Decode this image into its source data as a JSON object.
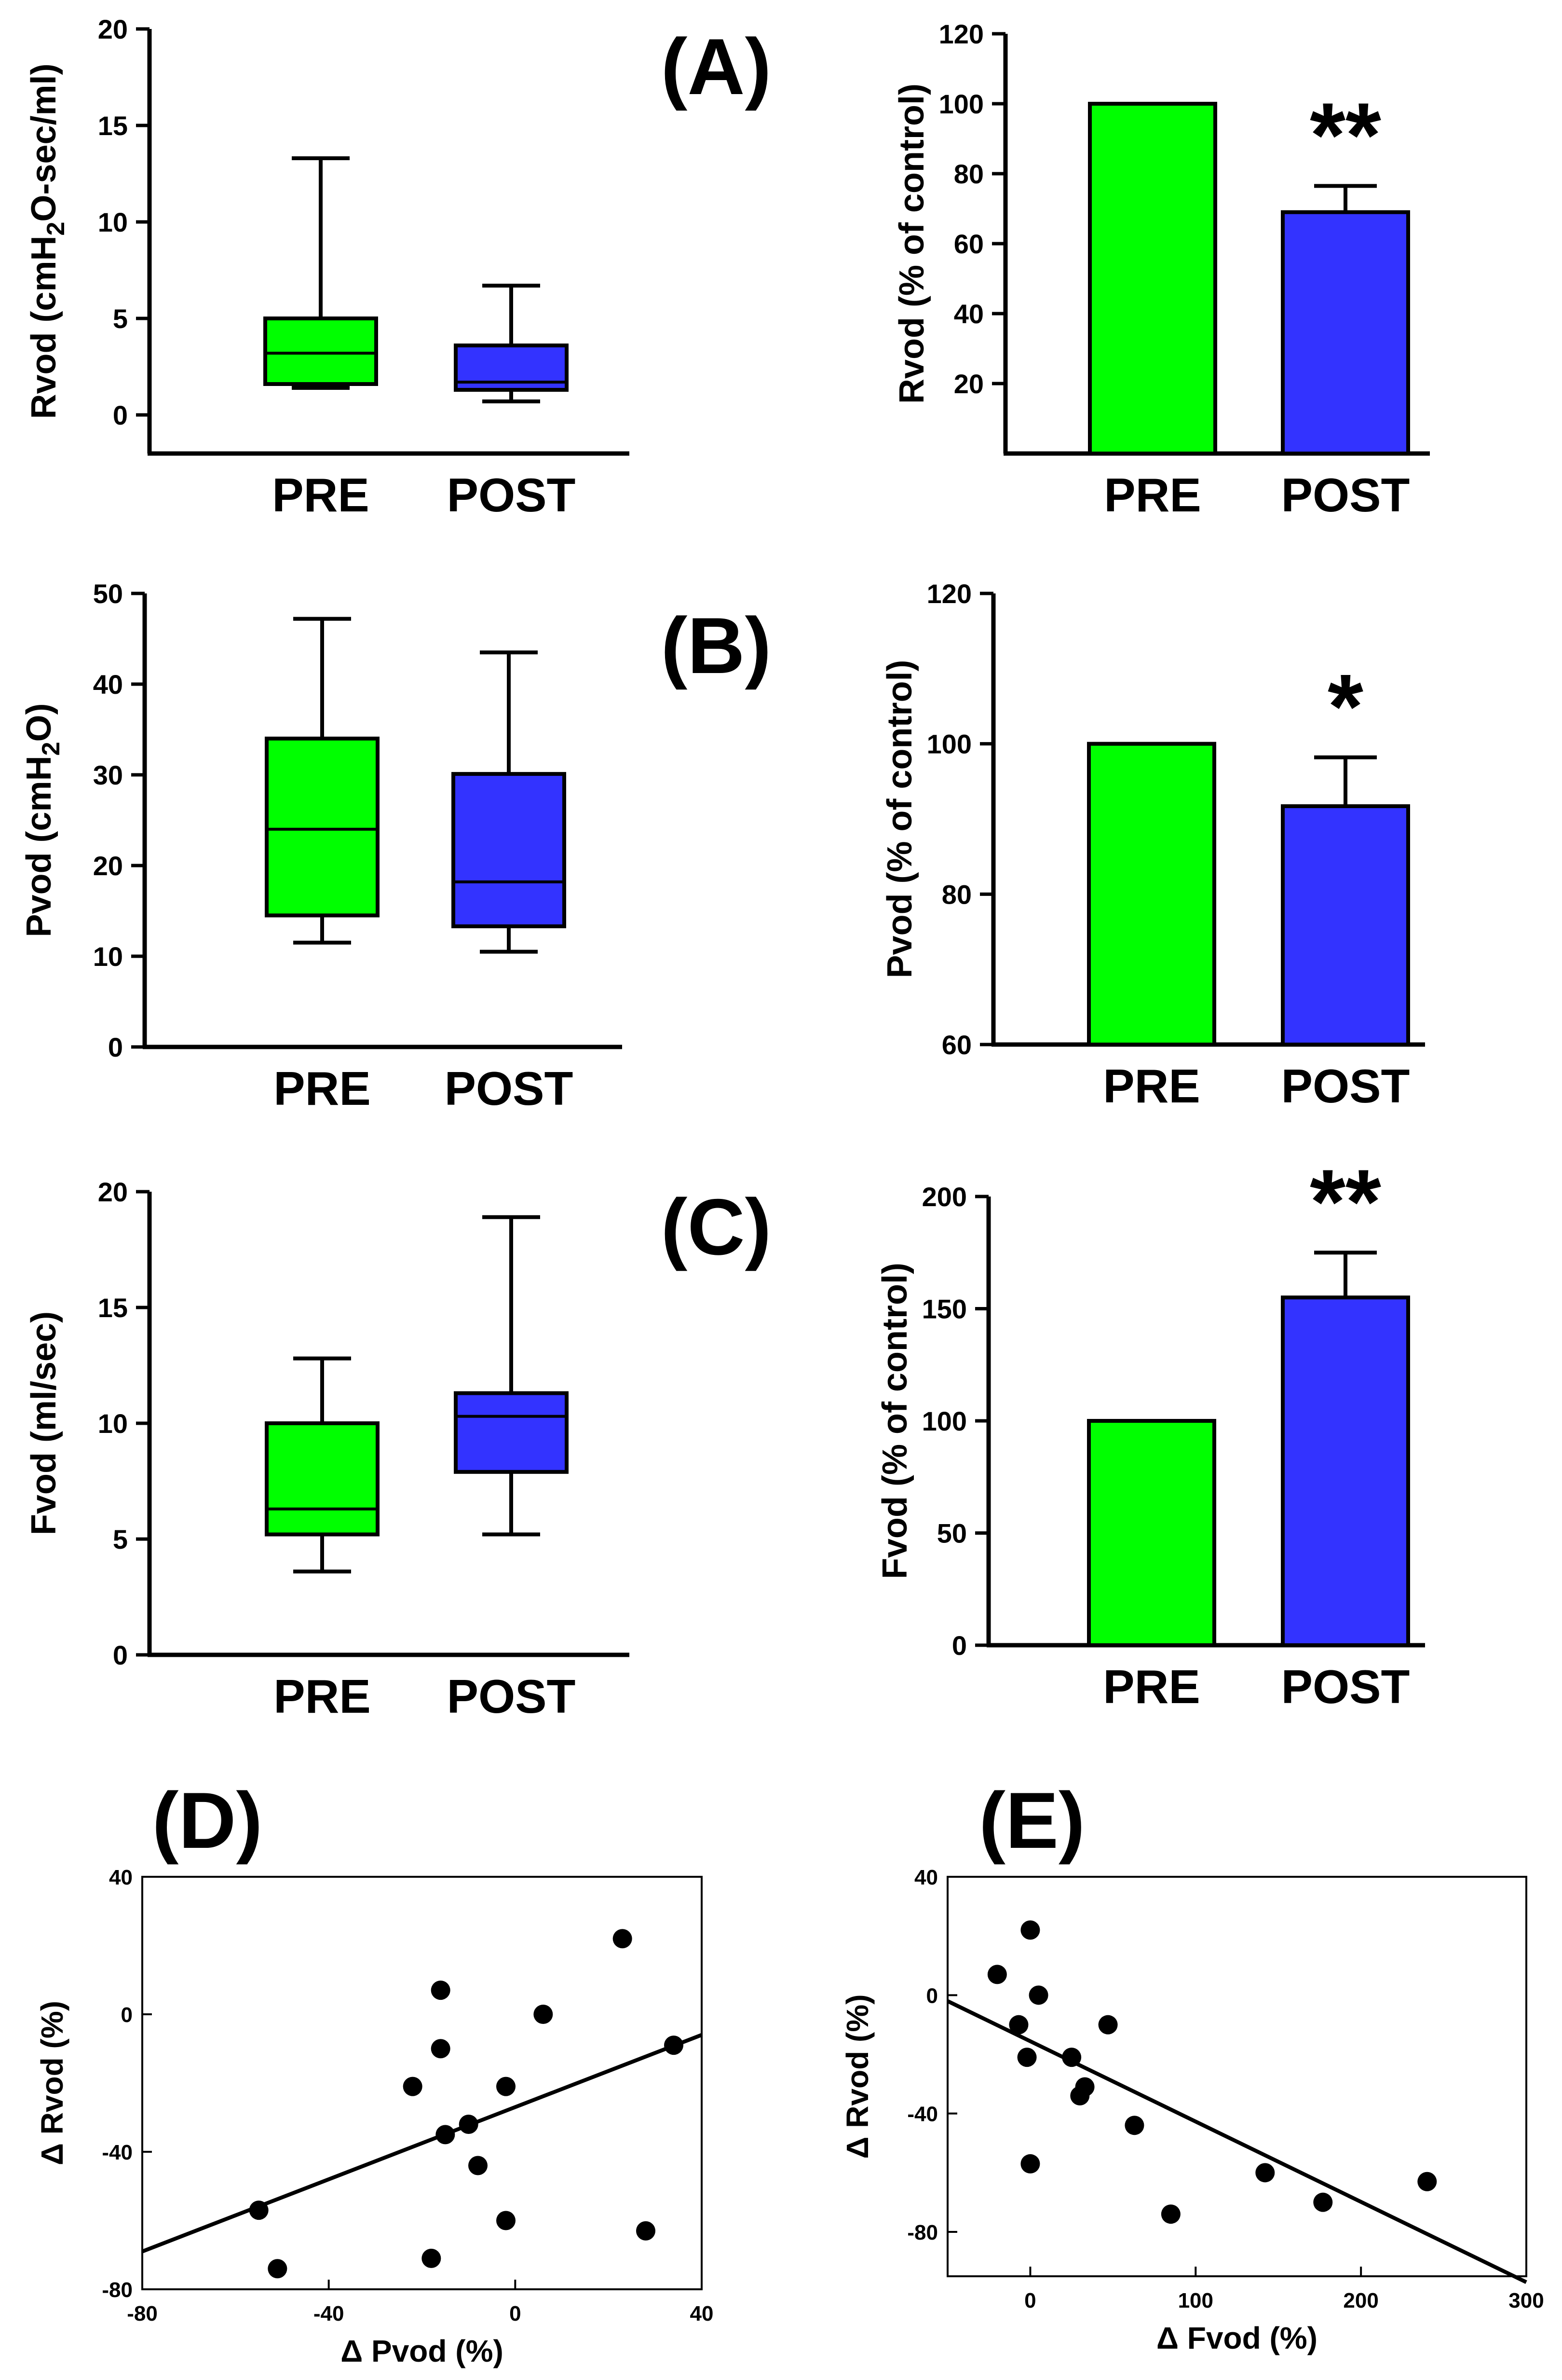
{
  "panels": [
    {
      "id": "A",
      "label": "(A)"
    },
    {
      "id": "B",
      "label": "(B)"
    },
    {
      "id": "C",
      "label": "(C)"
    },
    {
      "id": "D",
      "label": "(D)"
    },
    {
      "id": "E",
      "label": "(E)"
    }
  ],
  "colors": {
    "pre": "#00ff00",
    "post": "#3333ff",
    "ink": "#000000"
  },
  "chart_data": [
    {
      "id": "A-left",
      "panel": "A",
      "type": "box",
      "categories": [
        "PRE",
        "POST"
      ],
      "ylabel": "Rvod (cmH2O-sec/ml)",
      "ylabel_parts": [
        "Rvod (cmH",
        "2",
        "O-sec/ml)"
      ],
      "ylim": [
        -2,
        20
      ],
      "yticks": [
        0,
        5,
        10,
        15,
        20
      ],
      "boxes": [
        {
          "name": "PRE",
          "min": 1.4,
          "q1": 1.6,
          "median": 3.2,
          "q3": 5.0,
          "max": 13.3
        },
        {
          "name": "POST",
          "min": 0.7,
          "q1": 1.3,
          "median": 1.7,
          "q3": 3.6,
          "max": 6.7
        }
      ]
    },
    {
      "id": "A-right",
      "panel": "A",
      "type": "bar",
      "categories": [
        "PRE",
        "POST"
      ],
      "ylabel": "Rvod (% of control)",
      "ylim": [
        0,
        120
      ],
      "yticks": [
        20,
        40,
        60,
        80,
        100,
        120
      ],
      "values": [
        100,
        69
      ],
      "errors": [
        0,
        7.5
      ],
      "annotations": [
        "",
        "**"
      ]
    },
    {
      "id": "B-left",
      "panel": "B",
      "type": "box",
      "categories": [
        "PRE",
        "POST"
      ],
      "ylabel": "Pvod (cmH2O)",
      "ylabel_parts": [
        "Pvod (cmH",
        "2",
        "O)"
      ],
      "ylim": [
        0,
        50
      ],
      "yticks": [
        0,
        10,
        20,
        30,
        40,
        50
      ],
      "boxes": [
        {
          "name": "PRE",
          "min": 11.5,
          "q1": 14.5,
          "median": 24,
          "q3": 34,
          "max": 47.2
        },
        {
          "name": "POST",
          "min": 10.5,
          "q1": 13.3,
          "median": 18.2,
          "q3": 30.1,
          "max": 43.5
        }
      ]
    },
    {
      "id": "B-right",
      "panel": "B",
      "type": "bar",
      "categories": [
        "PRE",
        "POST"
      ],
      "ylabel": "Pvod (% of control)",
      "ylim": [
        60,
        120
      ],
      "yticks": [
        60,
        80,
        100,
        120
      ],
      "values": [
        100,
        91.7
      ],
      "errors": [
        0,
        6.5
      ],
      "annotations": [
        "",
        "*"
      ]
    },
    {
      "id": "C-left",
      "panel": "C",
      "type": "box",
      "categories": [
        "PRE",
        "POST"
      ],
      "ylabel": "Fvod (ml/sec)",
      "ylabel_parts": [
        "Fvod (ml/sec)"
      ],
      "ylim": [
        0,
        20
      ],
      "yticks": [
        0,
        5,
        10,
        15,
        20
      ],
      "boxes": [
        {
          "name": "PRE",
          "min": 3.6,
          "q1": 5.2,
          "median": 6.3,
          "q3": 10.0,
          "max": 12.8
        },
        {
          "name": "POST",
          "min": 5.2,
          "q1": 7.9,
          "median": 10.3,
          "q3": 11.3,
          "max": 18.9
        }
      ]
    },
    {
      "id": "C-right",
      "panel": "C",
      "type": "bar",
      "categories": [
        "PRE",
        "POST"
      ],
      "ylabel": "Fvod (% of control)",
      "ylim": [
        0,
        200
      ],
      "yticks": [
        0,
        50,
        100,
        150,
        200
      ],
      "values": [
        100,
        155
      ],
      "errors": [
        0,
        20
      ],
      "annotations": [
        "",
        "**"
      ]
    },
    {
      "id": "D",
      "panel": "D",
      "type": "scatter",
      "xlabel": "Δ Pvod (%)",
      "ylabel": "Δ Rvod (%)",
      "xlim": [
        -80,
        40
      ],
      "ylim": [
        -80,
        40
      ],
      "xticks": [
        -80,
        -40,
        0,
        40
      ],
      "yticks": [
        -80,
        -40,
        0,
        40
      ],
      "points": [
        [
          -55,
          -57
        ],
        [
          -51,
          -74
        ],
        [
          -22,
          -21
        ],
        [
          -16,
          7
        ],
        [
          -16,
          -10
        ],
        [
          -15,
          -35
        ],
        [
          -18,
          -71
        ],
        [
          -10,
          -32
        ],
        [
          -8,
          -44
        ],
        [
          -2,
          -21
        ],
        [
          -2,
          -60
        ],
        [
          6,
          0
        ],
        [
          23,
          22
        ],
        [
          28,
          -63
        ],
        [
          34,
          -9
        ]
      ],
      "fit": [
        [
          -80,
          -69
        ],
        [
          40,
          -6
        ]
      ]
    },
    {
      "id": "E",
      "panel": "E",
      "type": "scatter",
      "xlabel": "Δ Fvod (%)",
      "ylabel": "Δ Rvod (%)",
      "xlim": [
        -50,
        300
      ],
      "ylim": [
        -95,
        40
      ],
      "xticks": [
        0,
        100,
        200,
        300
      ],
      "yticks": [
        -80,
        -40,
        0,
        40
      ],
      "points": [
        [
          -20,
          7
        ],
        [
          -7,
          -10
        ],
        [
          -2,
          -21
        ],
        [
          0,
          -57
        ],
        [
          0,
          22
        ],
        [
          5,
          0
        ],
        [
          25,
          -21
        ],
        [
          30,
          -34
        ],
        [
          33,
          -31
        ],
        [
          47,
          -10
        ],
        [
          63,
          -44
        ],
        [
          85,
          -74
        ],
        [
          142,
          -60
        ],
        [
          177,
          -70
        ],
        [
          240,
          -63
        ]
      ],
      "fit": [
        [
          -50,
          -2
        ],
        [
          300,
          -97
        ]
      ]
    }
  ]
}
